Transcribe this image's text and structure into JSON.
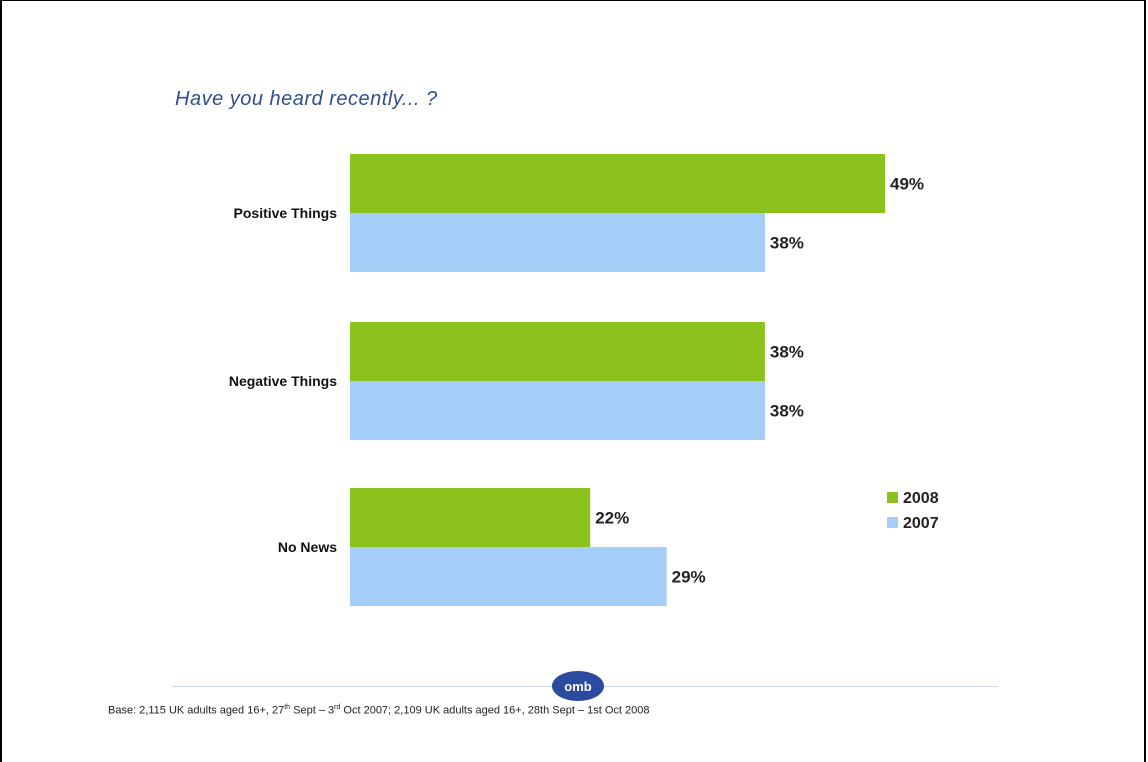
{
  "chart_data": {
    "type": "bar",
    "orientation": "horizontal",
    "title": "Have you heard recently... ?",
    "categories": [
      "Positive Things",
      "Negative Things",
      "No News"
    ],
    "series": [
      {
        "name": "2008",
        "values": [
          49,
          38,
          22
        ],
        "color": "#8cc21e"
      },
      {
        "name": "2007",
        "values": [
          38,
          38,
          29
        ],
        "color": "#a4cdf8"
      }
    ],
    "value_labels": {
      "2008": [
        "49%",
        "38%",
        "22%"
      ],
      "2007": [
        "38%",
        "38%",
        "29%"
      ]
    },
    "xlim": [
      0,
      60
    ],
    "grid": false,
    "legend_position": "right"
  },
  "footer": {
    "part1": "Base: 2,115 UK adults aged 16+, 27",
    "sup1": "th",
    "part2": " Sept – 3",
    "sup2": "rd",
    "part3": " Oct 2007; 2,109 UK adults aged 16+, 28th Sept – 1st Oct 2008"
  },
  "logo_text": "omb"
}
